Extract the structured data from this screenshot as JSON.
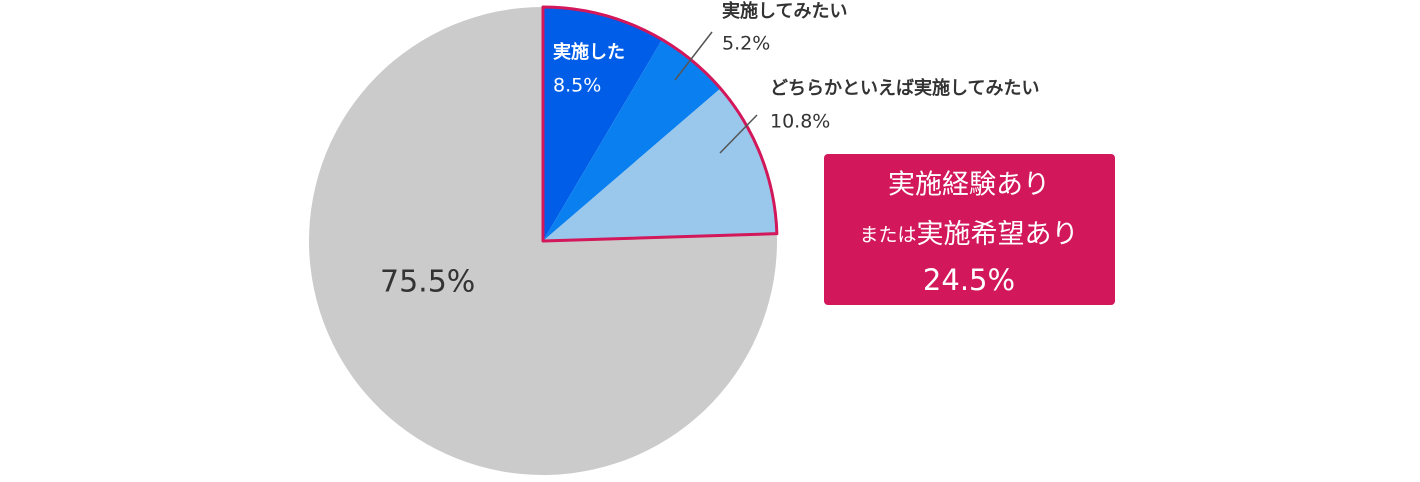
{
  "chart_data": {
    "type": "pie",
    "categories": [
      "実施した",
      "実施してみたい",
      "どちらかといえば実施してみたい",
      null
    ],
    "values": [
      8.5,
      5.2,
      10.8,
      75.5
    ],
    "value_labels": [
      "8.5%",
      "5.2%",
      "10.8%",
      "75.5%"
    ],
    "colors": [
      "#005de8",
      "#0a80f0",
      "#99c8ec",
      "#cbcbcb"
    ],
    "highlight": {
      "lines": [
        "実施経験あり",
        "または",
        "実施希望あり"
      ],
      "value": 24.5,
      "value_label": "24.5%",
      "color": "#d2175a"
    }
  }
}
